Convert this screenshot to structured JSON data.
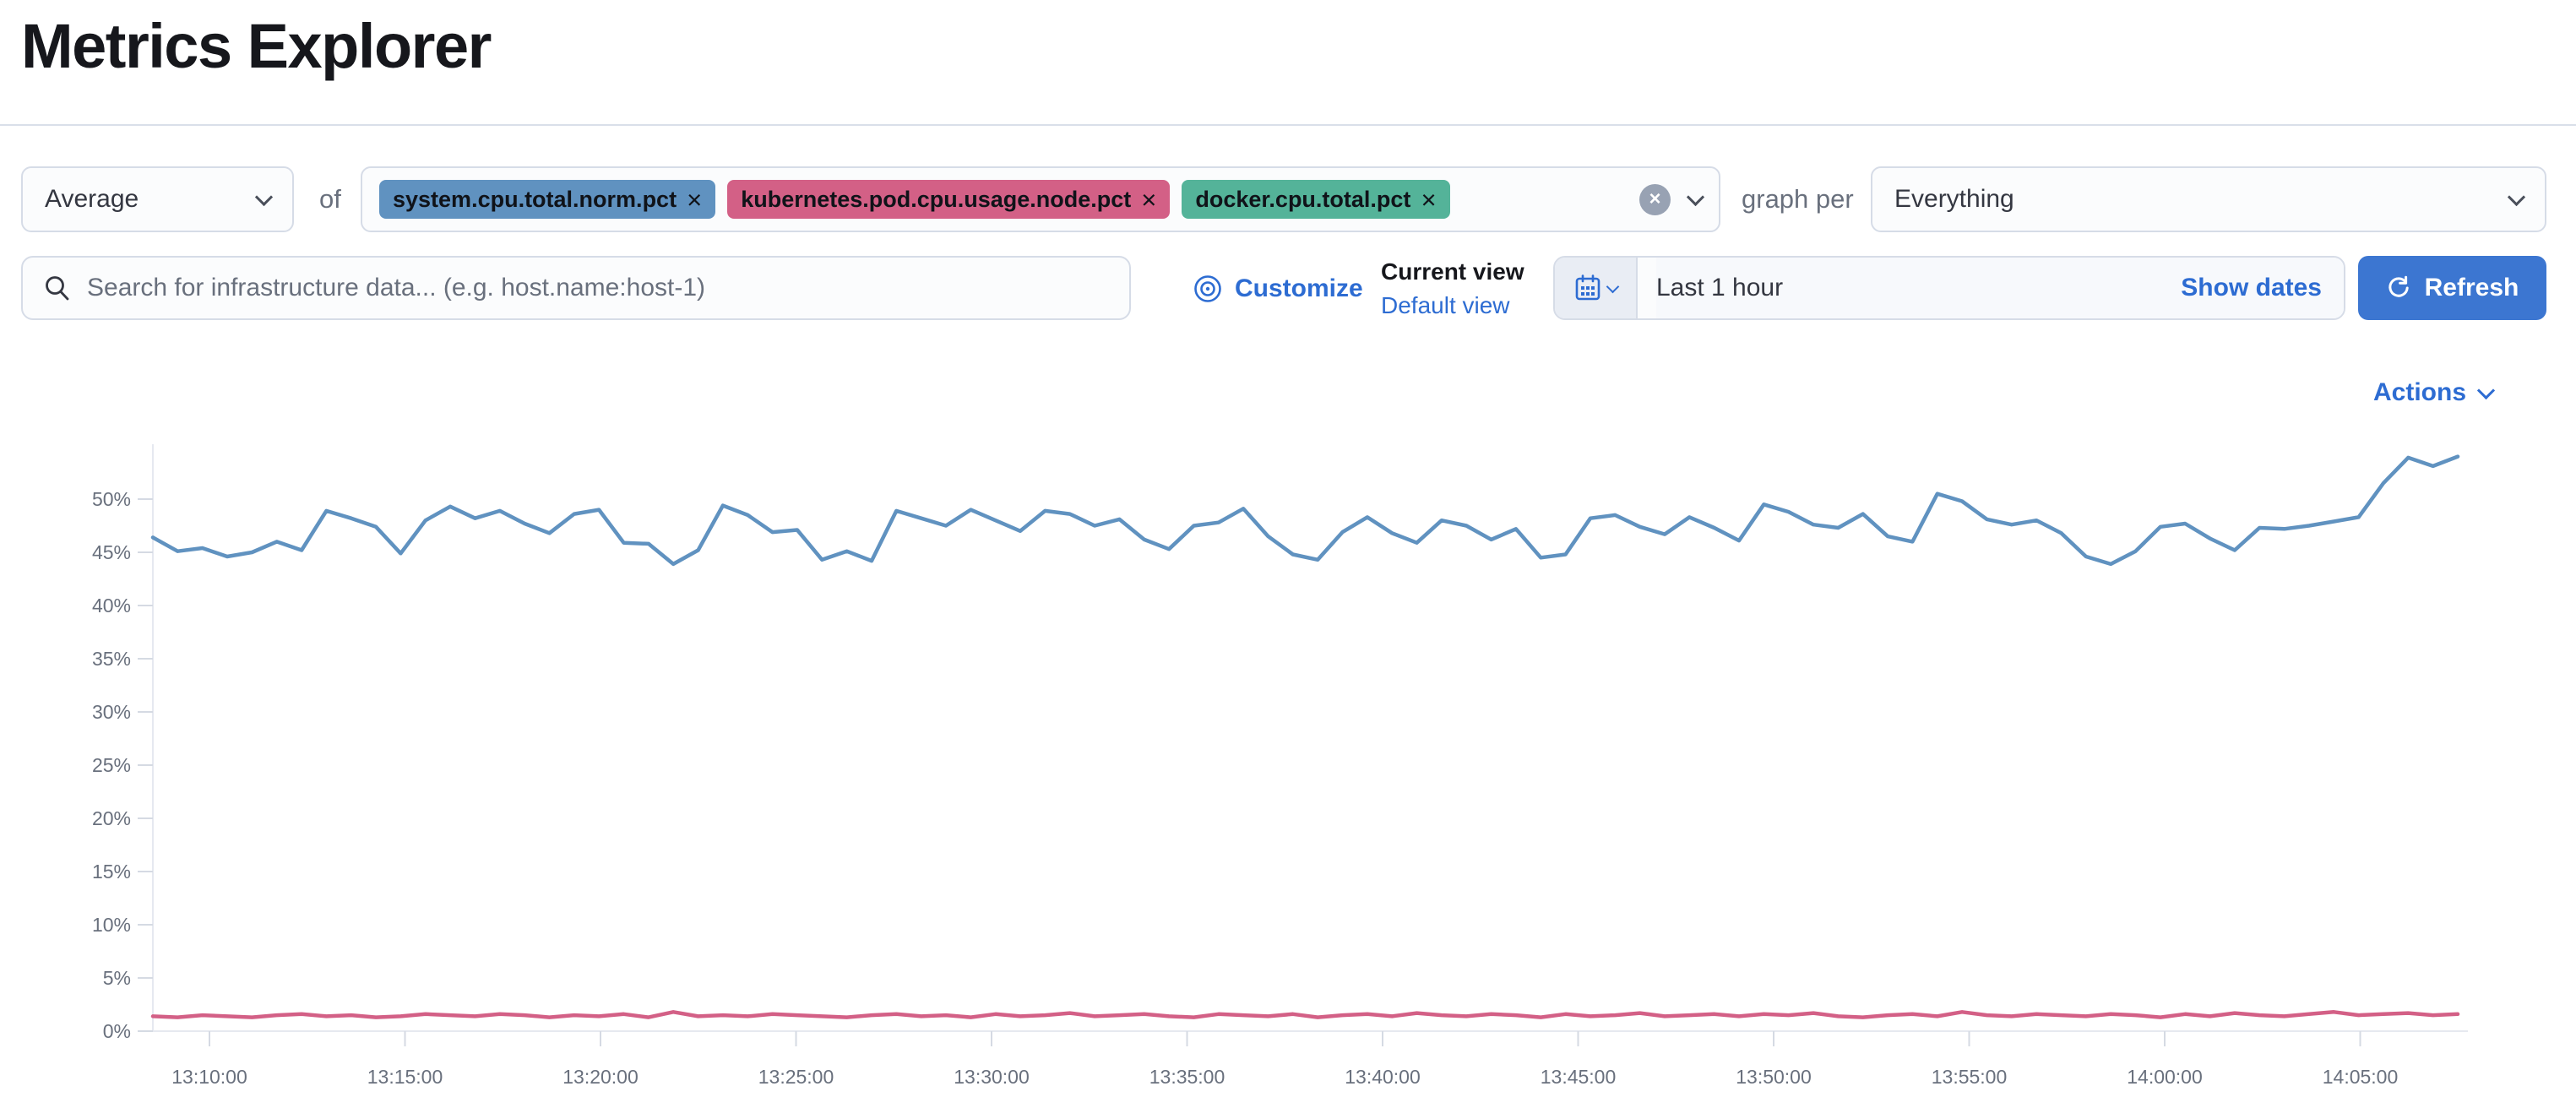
{
  "page": {
    "title": "Metrics Explorer"
  },
  "toolbar": {
    "aggregation_value": "Average",
    "of_label": "of",
    "metrics": [
      {
        "label": "system.cpu.total.norm.pct",
        "color": "#6092C0",
        "remove_label": "×"
      },
      {
        "label": "kubernetes.pod.cpu.usage.node.pct",
        "color": "#D36086",
        "remove_label": "×"
      },
      {
        "label": "docker.cpu.total.pct",
        "color": "#54B399",
        "remove_label": "×"
      }
    ],
    "clear_all_label": "×",
    "graph_per_label": "graph per",
    "group_by_value": "Everything"
  },
  "filter_bar": {
    "search_placeholder": "Search for infrastructure data... (e.g. host.name:host-1)",
    "customize_label": "Customize",
    "view_picker": {
      "title": "Current view",
      "value": "Default view"
    },
    "date_picker": {
      "value": "Last 1 hour",
      "show_dates_label": "Show dates"
    },
    "refresh_label": "Refresh"
  },
  "chart": {
    "actions_label": "Actions"
  },
  "colors": {
    "link_blue": "#2d6cd2",
    "primary_button": "#3c76d1",
    "axis_line": "#e6e9f0",
    "axis_tick": "#d5dae3",
    "axis_text": "#69707d"
  },
  "chart_data": {
    "type": "line",
    "title": "",
    "xlabel": "",
    "ylabel": "",
    "ylim": [
      0,
      55
    ],
    "grid": false,
    "legend": "none",
    "y_ticks": [
      "0%",
      "5%",
      "10%",
      "15%",
      "20%",
      "25%",
      "30%",
      "35%",
      "40%",
      "45%",
      "50%"
    ],
    "x_ticks": [
      "13:10:00",
      "13:15:00",
      "13:20:00",
      "13:25:00",
      "13:30:00",
      "13:35:00",
      "13:40:00",
      "13:45:00",
      "13:50:00",
      "13:55:00",
      "14:00:00",
      "14:05:00"
    ],
    "series": [
      {
        "name": "system.cpu.total.norm.pct (avg)",
        "color": "#6092C0",
        "values": [
          46.4,
          45.1,
          45.4,
          44.6,
          45.0,
          46.0,
          45.2,
          48.9,
          48.2,
          47.4,
          44.9,
          48.0,
          49.3,
          48.2,
          48.9,
          47.7,
          46.8,
          48.6,
          49.0,
          45.9,
          45.8,
          43.9,
          45.2,
          49.4,
          48.5,
          46.9,
          47.1,
          44.3,
          45.1,
          44.2,
          48.9,
          48.2,
          47.5,
          49.0,
          48.0,
          47.0,
          48.9,
          48.6,
          47.5,
          48.1,
          46.2,
          45.3,
          47.5,
          47.8,
          49.1,
          46.5,
          44.8,
          44.3,
          46.9,
          48.3,
          46.8,
          45.9,
          48.0,
          47.5,
          46.2,
          47.2,
          44.5,
          44.8,
          48.2,
          48.5,
          47.4,
          46.7,
          48.3,
          47.3,
          46.1,
          49.5,
          48.8,
          47.6,
          47.3,
          48.6,
          46.5,
          46.0,
          50.5,
          49.8,
          48.1,
          47.6,
          48.0,
          46.8,
          44.6,
          43.9,
          45.1,
          47.4,
          47.7,
          46.3,
          45.2,
          47.3,
          47.2,
          47.5,
          47.9,
          48.3,
          51.5,
          53.9,
          53.1,
          54.0
        ]
      },
      {
        "name": "kubernetes.pod.cpu.usage.node.pct (avg)",
        "color": "#D36086",
        "values": [
          1.4,
          1.3,
          1.5,
          1.4,
          1.3,
          1.5,
          1.6,
          1.4,
          1.5,
          1.3,
          1.4,
          1.6,
          1.5,
          1.4,
          1.6,
          1.5,
          1.3,
          1.5,
          1.4,
          1.6,
          1.3,
          1.8,
          1.4,
          1.5,
          1.4,
          1.6,
          1.5,
          1.4,
          1.3,
          1.5,
          1.6,
          1.4,
          1.5,
          1.3,
          1.6,
          1.4,
          1.5,
          1.7,
          1.4,
          1.5,
          1.6,
          1.4,
          1.3,
          1.6,
          1.5,
          1.4,
          1.6,
          1.3,
          1.5,
          1.6,
          1.4,
          1.7,
          1.5,
          1.4,
          1.6,
          1.5,
          1.3,
          1.6,
          1.4,
          1.5,
          1.7,
          1.4,
          1.5,
          1.6,
          1.4,
          1.6,
          1.5,
          1.7,
          1.4,
          1.3,
          1.5,
          1.6,
          1.4,
          1.8,
          1.5,
          1.4,
          1.6,
          1.5,
          1.4,
          1.6,
          1.5,
          1.3,
          1.6,
          1.4,
          1.7,
          1.5,
          1.4,
          1.6,
          1.8,
          1.5,
          1.6,
          1.7,
          1.5,
          1.6
        ]
      }
    ]
  }
}
